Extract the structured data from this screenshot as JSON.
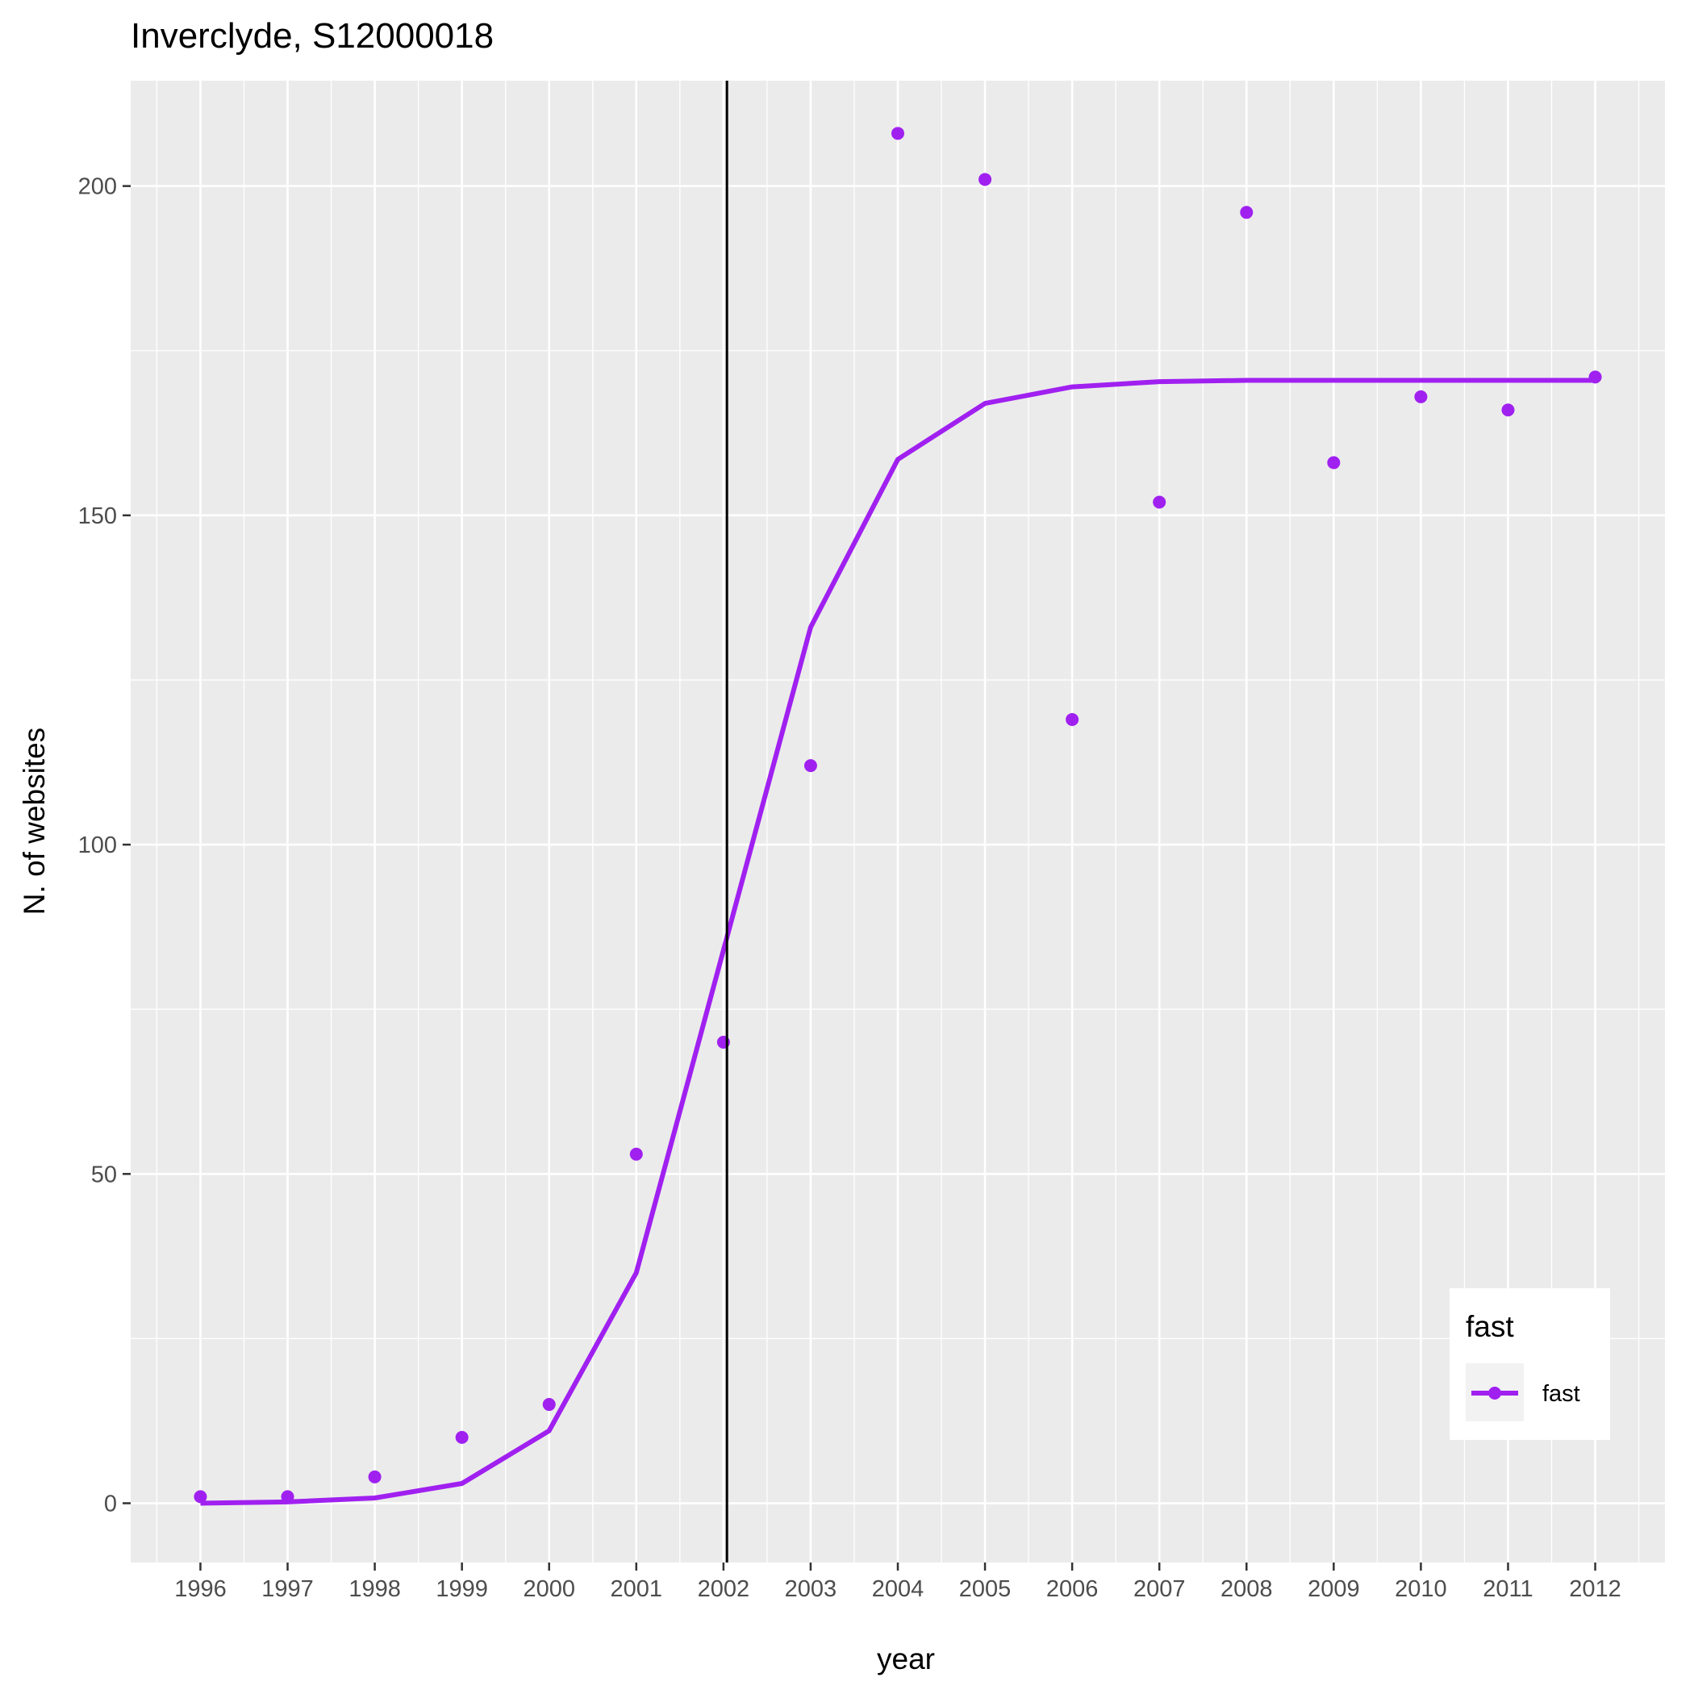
{
  "chart_data": {
    "type": "line",
    "title": "Inverclyde, S12000018",
    "xlabel": "year",
    "ylabel": "N. of websites",
    "x": [
      1996,
      1997,
      1998,
      1999,
      2000,
      2001,
      2002,
      2003,
      2004,
      2005,
      2006,
      2007,
      2008,
      2009,
      2010,
      2011,
      2012
    ],
    "x_tick_labels": [
      "1996",
      "1997",
      "1998",
      "1999",
      "2000",
      "2001",
      "2002",
      "2003",
      "2004",
      "2005",
      "2006",
      "2007",
      "2008",
      "2009",
      "2010",
      "2011",
      "2012"
    ],
    "y_ticks": [
      0,
      50,
      100,
      150,
      200
    ],
    "y_tick_labels": [
      "0",
      "50",
      "100",
      "150",
      "200"
    ],
    "xlim": [
      1995.2,
      2012.8
    ],
    "ylim": [
      -9,
      216
    ],
    "grid": true,
    "series": [
      {
        "name": "fast",
        "color": "#a020f0",
        "points": [
          1,
          1,
          4,
          10,
          15,
          53,
          70,
          112,
          208,
          201,
          119,
          152,
          196,
          158,
          168,
          166,
          171
        ],
        "fit": [
          0,
          0.2,
          0.8,
          3,
          11,
          35,
          84,
          133,
          158.5,
          167,
          169.5,
          170.3,
          170.5,
          170.5,
          170.5,
          170.5,
          170.5
        ]
      }
    ],
    "vline_x": 2002.04,
    "vline_color": "#000000",
    "legend": {
      "title": "fast",
      "label": "fast",
      "placement": "bottom-right"
    }
  }
}
